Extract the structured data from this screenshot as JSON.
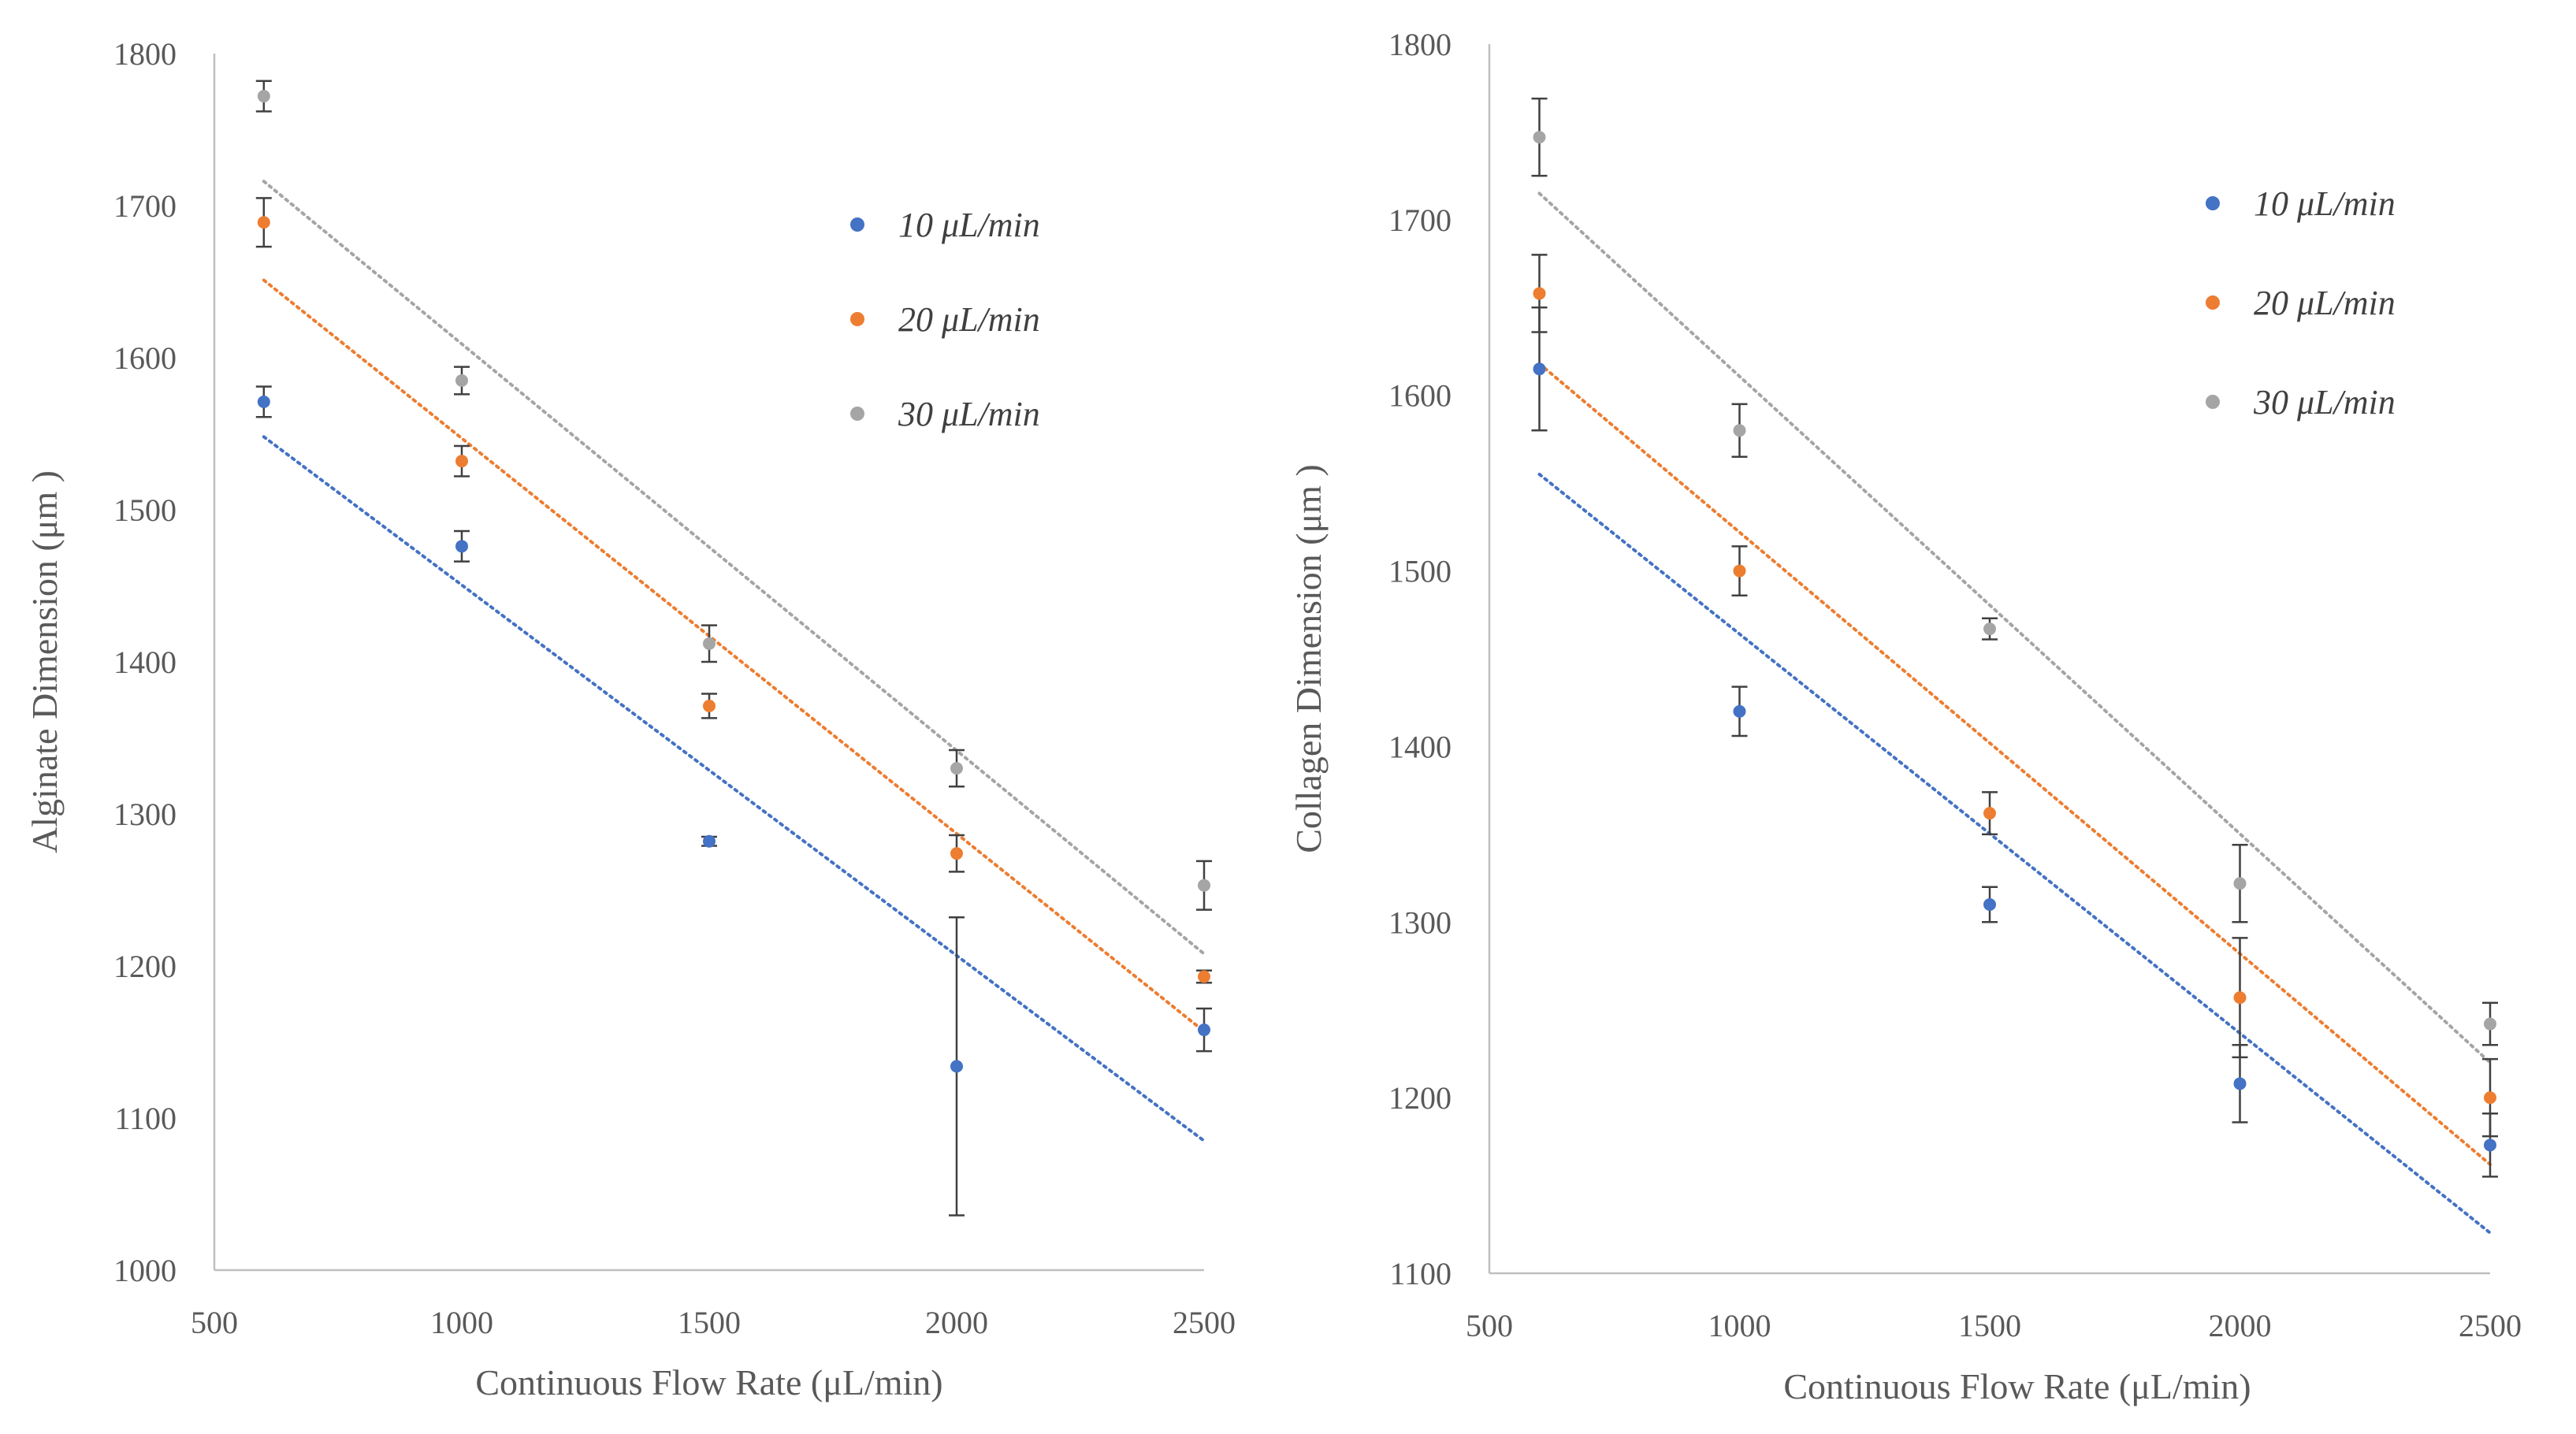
{
  "chart_data": [
    {
      "type": "scatter",
      "xlabel": "Continuous Flow Rate (μL/min)",
      "ylabel": "Alginate Dimension (μm )",
      "xlim": [
        500,
        2500
      ],
      "ylim": [
        1000,
        1800
      ],
      "xticks": [
        "500",
        "1000",
        "1500",
        "2000",
        "2500"
      ],
      "yticks": [
        "1000",
        "1100",
        "1200",
        "1300",
        "1400",
        "1500",
        "1600",
        "1700",
        "1800"
      ],
      "grid": false,
      "legend_position": "top-right",
      "series": [
        {
          "name": "10 μL/min",
          "color": "#4472c4",
          "x": [
            600,
            1000,
            1500,
            2000,
            2500
          ],
          "y": [
            1571,
            1476,
            1282,
            1134,
            1158
          ],
          "err": [
            10,
            10,
            3,
            98,
            14
          ],
          "trend": {
            "x0": 600,
            "y0": 1548,
            "x1": 2500,
            "y1": 1085
          }
        },
        {
          "name": "20 μL/min",
          "color": "#ed7d31",
          "x": [
            600,
            1000,
            1500,
            2000,
            2500
          ],
          "y": [
            1689,
            1532,
            1371,
            1274,
            1193
          ],
          "err": [
            16,
            10,
            8,
            12,
            4
          ],
          "trend": {
            "x0": 600,
            "y0": 1651,
            "x1": 2500,
            "y1": 1157
          }
        },
        {
          "name": "30 μL/min",
          "color": "#a5a5a5",
          "x": [
            600,
            1000,
            1500,
            2000,
            2500
          ],
          "y": [
            1772,
            1585,
            1412,
            1330,
            1253
          ],
          "err": [
            10,
            9,
            12,
            12,
            16
          ],
          "trend": {
            "x0": 600,
            "y0": 1716,
            "x1": 2500,
            "y1": 1208
          }
        }
      ]
    },
    {
      "type": "scatter",
      "xlabel": "Continuous Flow Rate (μL/min)",
      "ylabel": "Collagen Dimension (μm )",
      "xlim": [
        500,
        2500
      ],
      "ylim": [
        1100,
        1800
      ],
      "xticks": [
        "500",
        "1000",
        "1500",
        "2000",
        "2500"
      ],
      "yticks": [
        "1100",
        "1200",
        "1300",
        "1400",
        "1500",
        "1600",
        "1700",
        "1800"
      ],
      "grid": false,
      "legend_position": "top-right",
      "series": [
        {
          "name": "10 μL/min",
          "color": "#4472c4",
          "x": [
            600,
            1000,
            1500,
            2000,
            2500
          ],
          "y": [
            1615,
            1420,
            1310,
            1208,
            1173
          ],
          "err": [
            35,
            14,
            10,
            22,
            18
          ],
          "trend": {
            "x0": 600,
            "y0": 1555,
            "x1": 2500,
            "y1": 1123
          }
        },
        {
          "name": "20 μL/min",
          "color": "#ed7d31",
          "x": [
            600,
            1000,
            1500,
            2000,
            2500
          ],
          "y": [
            1658,
            1500,
            1362,
            1257,
            1200
          ],
          "err": [
            22,
            14,
            12,
            34,
            22
          ],
          "trend": {
            "x0": 600,
            "y0": 1618,
            "x1": 2500,
            "y1": 1162
          }
        },
        {
          "name": "30 μL/min",
          "color": "#a5a5a5",
          "x": [
            600,
            1000,
            1500,
            2000,
            2500
          ],
          "y": [
            1747,
            1580,
            1467,
            1322,
            1242
          ],
          "err": [
            22,
            15,
            6,
            22,
            12
          ],
          "trend": {
            "x0": 600,
            "y0": 1715,
            "x1": 2500,
            "y1": 1220
          }
        }
      ]
    }
  ]
}
